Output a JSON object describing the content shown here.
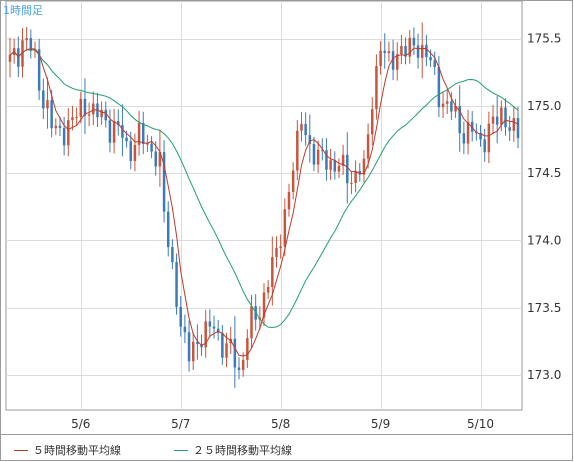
{
  "chart_data": {
    "type": "candlestick",
    "title": "1時間足",
    "x_tick_labels": [
      "5/6",
      "5/7",
      "5/8",
      "5/9",
      "5/10"
    ],
    "y_tick_labels": [
      "175.5",
      "175.0",
      "174.5",
      "174.0",
      "173.5",
      "173.0"
    ],
    "ylim": [
      172.74,
      175.78
    ],
    "grid": true,
    "colors": {
      "up": "#c8553d",
      "down": "#3d7bb8",
      "ma5": "#c0392b",
      "ma25": "#22a06b"
    },
    "series": [
      {
        "name": "５時間移動平均線",
        "color": "#c0392b"
      },
      {
        "name": "２５時間移動平均線",
        "color": "#22a06b"
      }
    ],
    "path_keypoints": [
      [
        0,
        175.3
      ],
      [
        3,
        175.5
      ],
      [
        6,
        175.35
      ],
      [
        8,
        175.05
      ],
      [
        10,
        174.85
      ],
      [
        13,
        174.8
      ],
      [
        16,
        174.95
      ],
      [
        19,
        175.0
      ],
      [
        22,
        174.9
      ],
      [
        25,
        174.85
      ],
      [
        28,
        174.7
      ],
      [
        31,
        174.75
      ],
      [
        34,
        174.7
      ],
      [
        36,
        174.55
      ],
      [
        37,
        174.2
      ],
      [
        39,
        173.8
      ],
      [
        41,
        173.35
      ],
      [
        43,
        173.15
      ],
      [
        46,
        173.3
      ],
      [
        49,
        173.35
      ],
      [
        52,
        173.2
      ],
      [
        55,
        173.05
      ],
      [
        57,
        173.3
      ],
      [
        60,
        173.5
      ],
      [
        62,
        173.7
      ],
      [
        64,
        173.9
      ],
      [
        66,
        174.2
      ],
      [
        68,
        174.55
      ],
      [
        70,
        174.9
      ],
      [
        72,
        174.7
      ],
      [
        74,
        174.6
      ],
      [
        77,
        174.6
      ],
      [
        80,
        174.5
      ],
      [
        82,
        174.5
      ],
      [
        85,
        174.5
      ],
      [
        87,
        175.1
      ],
      [
        89,
        175.4
      ],
      [
        91,
        175.35
      ],
      [
        94,
        175.4
      ],
      [
        97,
        175.45
      ],
      [
        100,
        175.4
      ],
      [
        103,
        175.1
      ],
      [
        105,
        175.0
      ],
      [
        107,
        174.9
      ],
      [
        110,
        174.8
      ],
      [
        113,
        174.75
      ],
      [
        116,
        174.85
      ],
      [
        118,
        174.95
      ],
      [
        120,
        174.85
      ],
      [
        122,
        174.8
      ]
    ]
  }
}
